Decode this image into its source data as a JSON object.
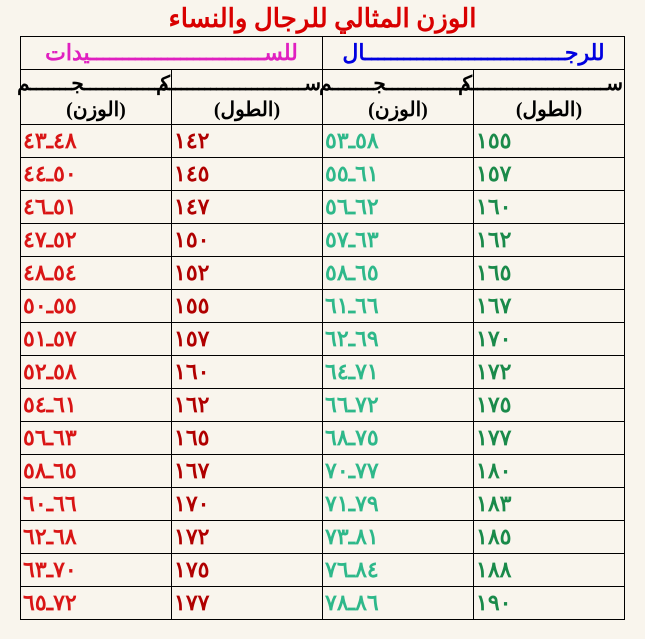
{
  "title": "الوزن المثالي للرجال والنساء",
  "title_color": "#d90000",
  "background_color": "#f9f5ed",
  "border_color": "#000000",
  "groups": {
    "men": {
      "label": "للرجـــــــــــــــــــــــــــــــال",
      "color": "#0000e0"
    },
    "women": {
      "label": "للســـــــــــــــــــــــــــيدات",
      "color": "#e020c0"
    }
  },
  "columns": {
    "height_label_top": "ســـــــــــــــــــــــم",
    "height_label_bottom": "(الطول)",
    "weight_label_top": "كـــــــــــــجـــــــم",
    "weight_label_bottom": "(الوزن)"
  },
  "colors": {
    "men_height": "#1a8a4a",
    "men_weight": "#2eb88a",
    "women_height": "#b00000",
    "women_weight": "#d91515"
  },
  "rows": [
    {
      "mh": "١٥٥",
      "mw": "٥٨ـ٥٣",
      "wh": "١٤٢",
      "ww": "٤٨ـ٤٣"
    },
    {
      "mh": "١٥٧",
      "mw": "٦١ـ٥٥",
      "wh": "١٤٥",
      "ww": "٥٠ـ٤٤"
    },
    {
      "mh": "١٦٠",
      "mw": "٦٢ـ٥٦",
      "wh": "١٤٧",
      "ww": "٥١ـ٤٦"
    },
    {
      "mh": "١٦٢",
      "mw": "٦٣ـ٥٧",
      "wh": "١٥٠",
      "ww": "٥٢ـ٤٧"
    },
    {
      "mh": "١٦٥",
      "mw": "٦٥ـ٥٨",
      "wh": "١٥٢",
      "ww": "٥٤ـ٤٨"
    },
    {
      "mh": "١٦٧",
      "mw": "٦٦ـ٦١",
      "wh": "١٥٥",
      "ww": "٥٥ـ٥٠"
    },
    {
      "mh": "١٧٠",
      "mw": "٦٩ـ٦٢",
      "wh": "١٥٧",
      "ww": "٥٧ـ٥١"
    },
    {
      "mh": "١٧٢",
      "mw": "٧١ـ٦٤",
      "wh": "١٦٠",
      "ww": "٥٨ـ٥٢"
    },
    {
      "mh": "١٧٥",
      "mw": "٧٢ـ٦٦",
      "wh": "١٦٢",
      "ww": "٦١ـ٥٤"
    },
    {
      "mh": "١٧٧",
      "mw": "٧٥ـ٦٨",
      "wh": "١٦٥",
      "ww": "٦٣ـ٥٦"
    },
    {
      "mh": "١٨٠",
      "mw": "٧٧ـ٧٠",
      "wh": "١٦٧",
      "ww": "٦٥ـ٥٨"
    },
    {
      "mh": "١٨٣",
      "mw": "٧٩ـ٧١",
      "wh": "١٧٠",
      "ww": "٦٦ـ٦٠"
    },
    {
      "mh": "١٨٥",
      "mw": "٨١ـ٧٣",
      "wh": "١٧٢",
      "ww": "٦٨ـ٦٢"
    },
    {
      "mh": "١٨٨",
      "mw": "٨٤ـ٧٦",
      "wh": "١٧٥",
      "ww": "٧٠ـ٦٣"
    },
    {
      "mh": "١٩٠",
      "mw": "٨٦ـ٧٨",
      "wh": "١٧٧",
      "ww": "٧٢ـ٦٥"
    }
  ]
}
